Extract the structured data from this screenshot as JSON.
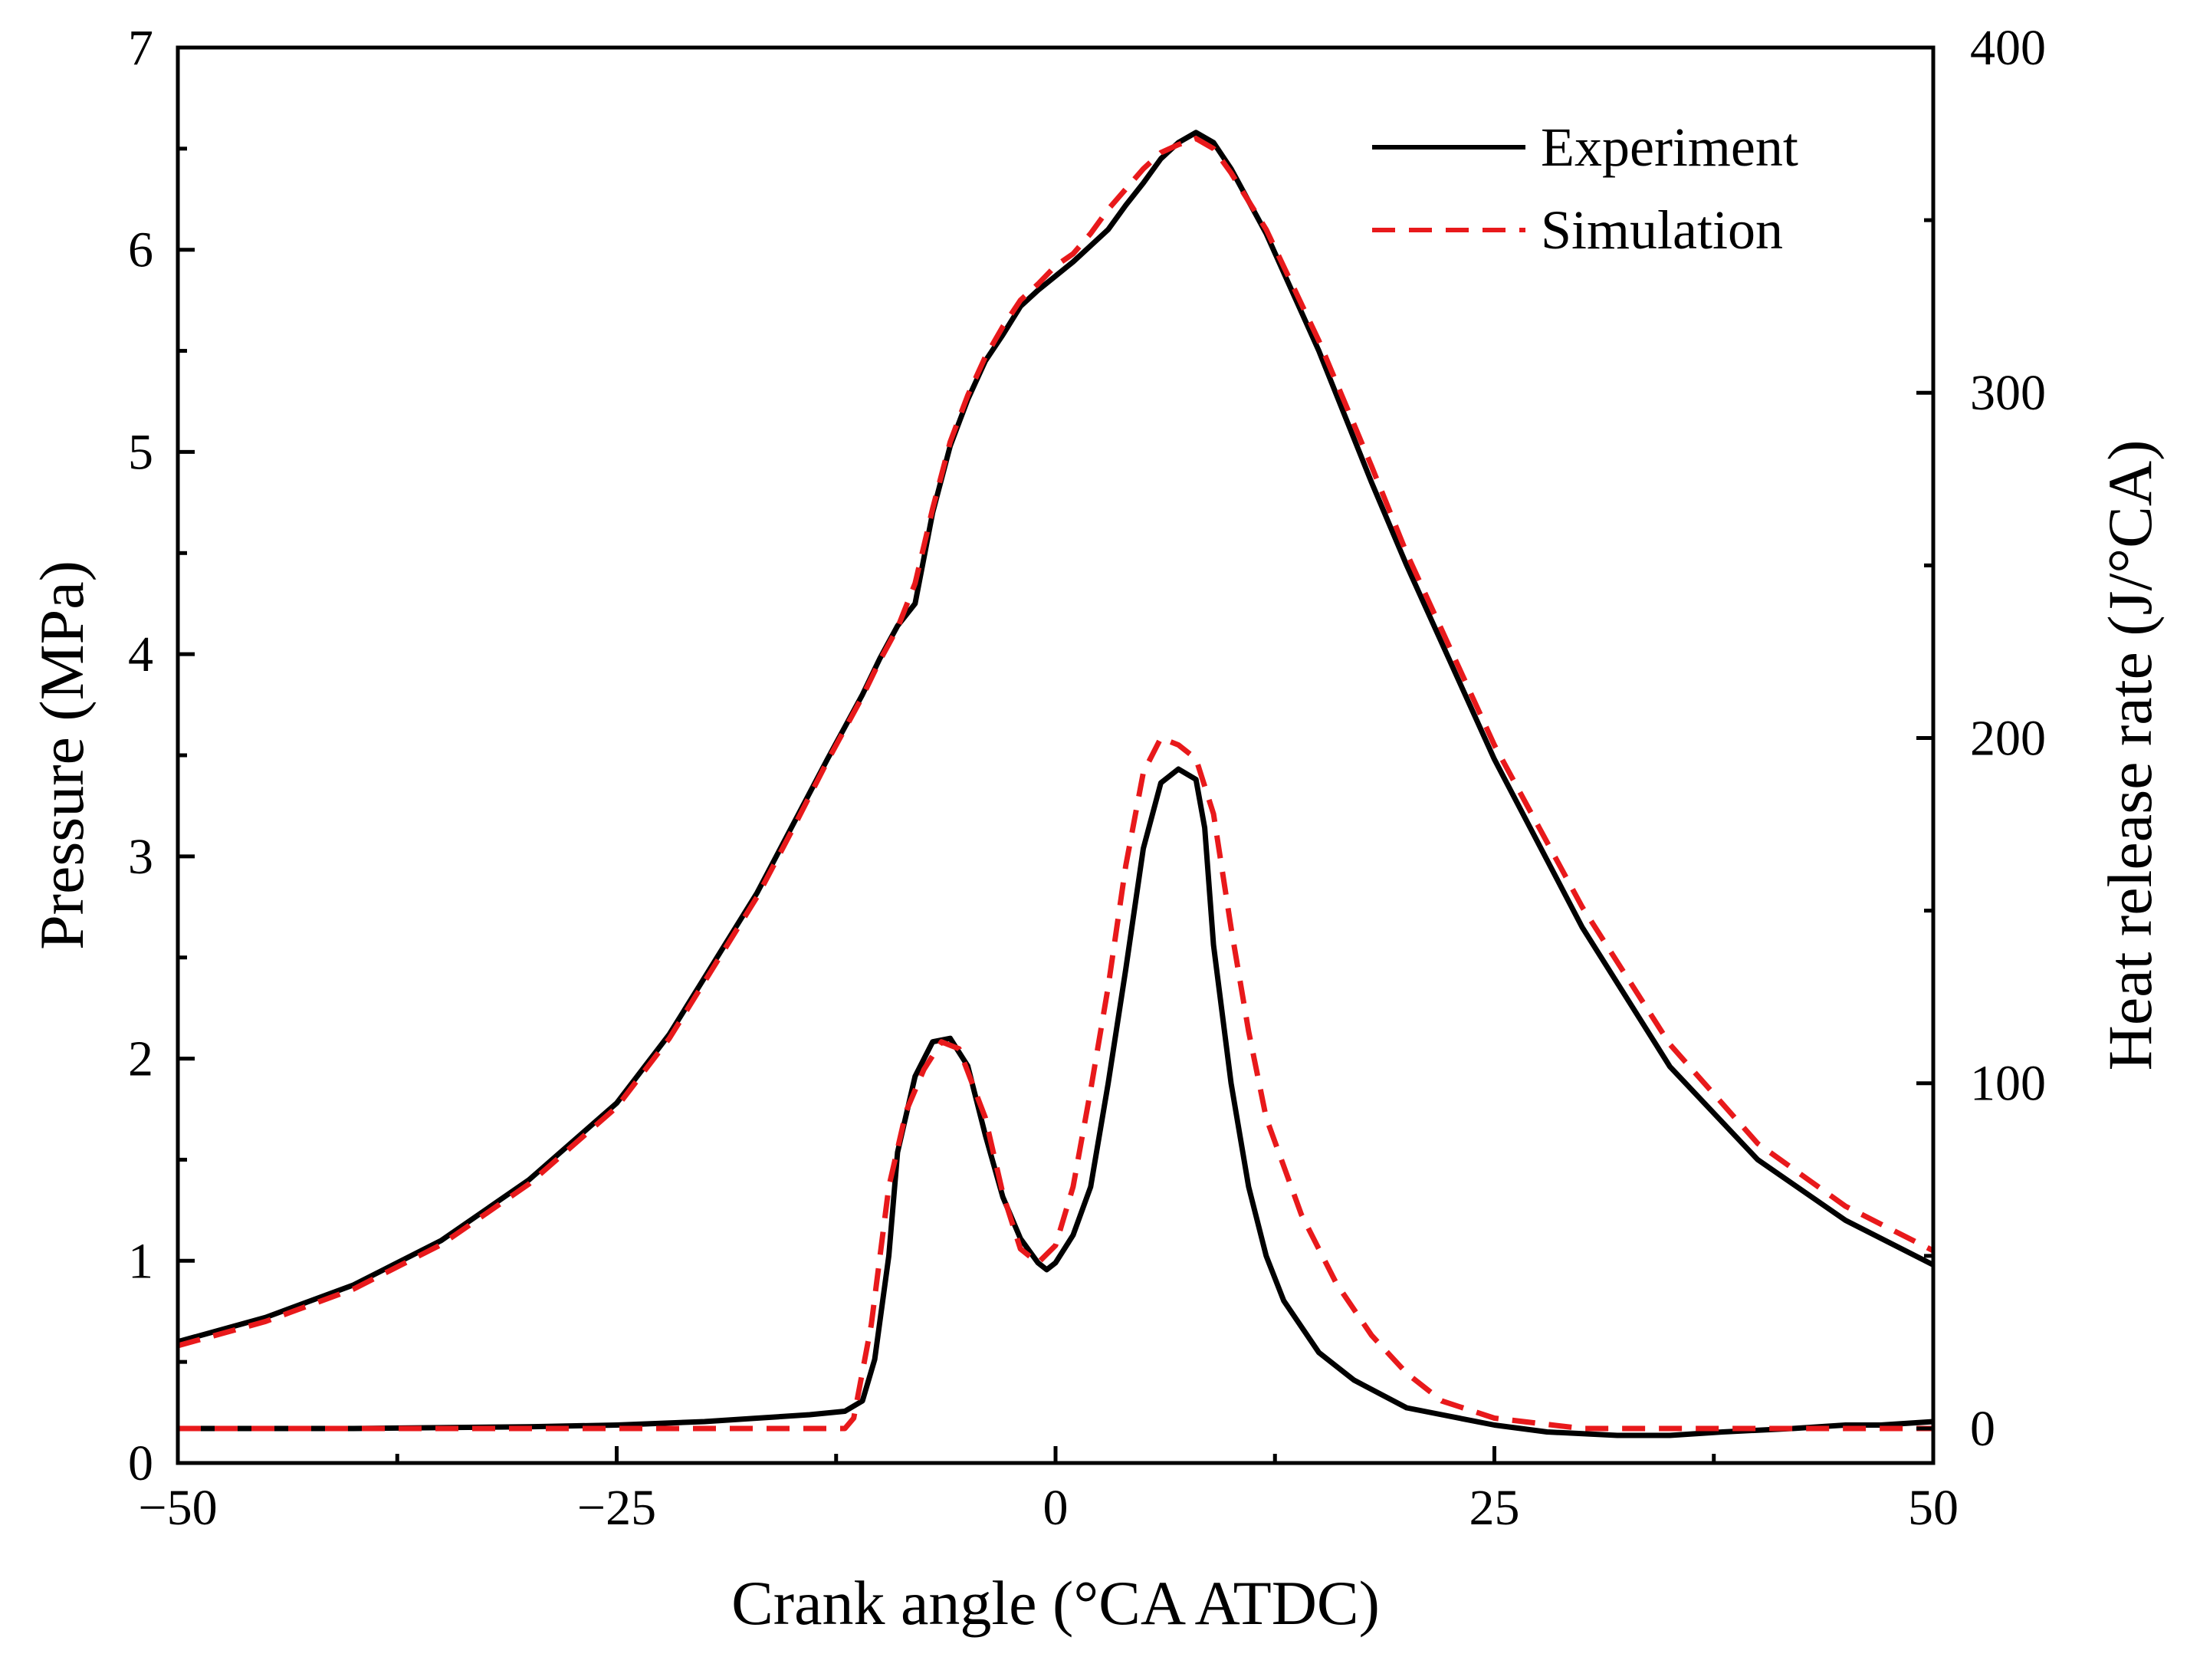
{
  "chart_data": {
    "type": "line",
    "title": "",
    "xlabel": "Crank angle (°CA ATDC)",
    "ylabel_left": "Pressure (MPa)",
    "ylabel_right": "Heat release rate (J/°CA)",
    "xlim": [
      -50,
      50
    ],
    "ylim_left": [
      0,
      7
    ],
    "ylim_right": [
      -10,
      400
    ],
    "x_ticks": [
      "−50",
      "−25",
      "0",
      "25",
      "50"
    ],
    "y_left_ticks": [
      "0",
      "1",
      "2",
      "3",
      "4",
      "5",
      "6",
      "7"
    ],
    "y_right_ticks": [
      "0",
      "100",
      "200",
      "300",
      "400"
    ],
    "grid": false,
    "legend": {
      "position": "top-right",
      "entries": [
        {
          "label": "Experiment",
          "color": "#000000",
          "style": "solid"
        },
        {
          "label": "Simulation",
          "color": "#e8191b",
          "style": "dashed"
        }
      ]
    },
    "series": [
      {
        "name": "Experiment",
        "quantity": "pressure",
        "axis": "left",
        "color": "#000000",
        "style": "solid",
        "points": [
          [
            -50,
            0.6
          ],
          [
            -45,
            0.72
          ],
          [
            -40,
            0.88
          ],
          [
            -35,
            1.1
          ],
          [
            -30,
            1.4
          ],
          [
            -25,
            1.78
          ],
          [
            -22,
            2.12
          ],
          [
            -20,
            2.4
          ],
          [
            -17,
            2.82
          ],
          [
            -15,
            3.15
          ],
          [
            -13,
            3.48
          ],
          [
            -11,
            3.8
          ],
          [
            -10,
            3.98
          ],
          [
            -9,
            4.14
          ],
          [
            -8,
            4.25
          ],
          [
            -7,
            4.7
          ],
          [
            -6,
            5.03
          ],
          [
            -5,
            5.26
          ],
          [
            -4,
            5.45
          ],
          [
            -3,
            5.58
          ],
          [
            -2,
            5.72
          ],
          [
            -1,
            5.8
          ],
          [
            0,
            5.87
          ],
          [
            1,
            5.94
          ],
          [
            2,
            6.02
          ],
          [
            3,
            6.1
          ],
          [
            4,
            6.22
          ],
          [
            5,
            6.33
          ],
          [
            6,
            6.45
          ],
          [
            7,
            6.53
          ],
          [
            8,
            6.58
          ],
          [
            9,
            6.53
          ],
          [
            10,
            6.4
          ],
          [
            12,
            6.08
          ],
          [
            15,
            5.5
          ],
          [
            18,
            4.85
          ],
          [
            20,
            4.44
          ],
          [
            25,
            3.48
          ],
          [
            30,
            2.65
          ],
          [
            35,
            1.96
          ],
          [
            40,
            1.5
          ],
          [
            45,
            1.2
          ],
          [
            50,
            0.98
          ]
        ]
      },
      {
        "name": "Simulation",
        "quantity": "pressure",
        "axis": "left",
        "color": "#e8191b",
        "style": "dashed",
        "points": [
          [
            -50,
            0.58
          ],
          [
            -45,
            0.7
          ],
          [
            -40,
            0.86
          ],
          [
            -35,
            1.08
          ],
          [
            -30,
            1.38
          ],
          [
            -25,
            1.76
          ],
          [
            -22,
            2.1
          ],
          [
            -20,
            2.38
          ],
          [
            -17,
            2.8
          ],
          [
            -15,
            3.13
          ],
          [
            -13,
            3.47
          ],
          [
            -11,
            3.79
          ],
          [
            -10,
            3.97
          ],
          [
            -9,
            4.13
          ],
          [
            -8,
            4.35
          ],
          [
            -7,
            4.72
          ],
          [
            -6,
            5.05
          ],
          [
            -5,
            5.28
          ],
          [
            -4,
            5.47
          ],
          [
            -3,
            5.62
          ],
          [
            -2,
            5.75
          ],
          [
            -1,
            5.83
          ],
          [
            0,
            5.92
          ],
          [
            1,
            5.98
          ],
          [
            2,
            6.08
          ],
          [
            3,
            6.2
          ],
          [
            4,
            6.3
          ],
          [
            5,
            6.4
          ],
          [
            6,
            6.48
          ],
          [
            7,
            6.52
          ],
          [
            8,
            6.55
          ],
          [
            9,
            6.5
          ],
          [
            10,
            6.38
          ],
          [
            12,
            6.1
          ],
          [
            15,
            5.55
          ],
          [
            18,
            4.93
          ],
          [
            20,
            4.5
          ],
          [
            25,
            3.55
          ],
          [
            30,
            2.75
          ],
          [
            35,
            2.07
          ],
          [
            40,
            1.58
          ],
          [
            45,
            1.27
          ],
          [
            50,
            1.05
          ]
        ]
      },
      {
        "name": "Experiment",
        "quantity": "heat release rate",
        "axis": "right",
        "color": "#000000",
        "style": "solid",
        "points": [
          [
            -50,
            0
          ],
          [
            -40,
            0
          ],
          [
            -30,
            0.5
          ],
          [
            -25,
            1
          ],
          [
            -20,
            2
          ],
          [
            -17,
            3
          ],
          [
            -14,
            4
          ],
          [
            -12,
            5
          ],
          [
            -11,
            8
          ],
          [
            -10.3,
            20
          ],
          [
            -9.5,
            50
          ],
          [
            -9,
            80
          ],
          [
            -8,
            102
          ],
          [
            -7,
            112
          ],
          [
            -6,
            113
          ],
          [
            -5,
            105
          ],
          [
            -4,
            85
          ],
          [
            -3,
            67
          ],
          [
            -2,
            55
          ],
          [
            -1,
            48
          ],
          [
            -0.5,
            46
          ],
          [
            0,
            48
          ],
          [
            1,
            56
          ],
          [
            2,
            70
          ],
          [
            3,
            100
          ],
          [
            4,
            133
          ],
          [
            5,
            168
          ],
          [
            6,
            187
          ],
          [
            7,
            191
          ],
          [
            8,
            188
          ],
          [
            8.5,
            174
          ],
          [
            9,
            140
          ],
          [
            10,
            100
          ],
          [
            11,
            70
          ],
          [
            12,
            50
          ],
          [
            13,
            37
          ],
          [
            15,
            22
          ],
          [
            17,
            14
          ],
          [
            20,
            6
          ],
          [
            22,
            4
          ],
          [
            25,
            1
          ],
          [
            28,
            -1
          ],
          [
            32,
            -2
          ],
          [
            35,
            -2
          ],
          [
            38,
            -1
          ],
          [
            42,
            0
          ],
          [
            45,
            1
          ],
          [
            47,
            1
          ],
          [
            50,
            2
          ]
        ]
      },
      {
        "name": "Simulation",
        "quantity": "heat release rate",
        "axis": "right",
        "color": "#e8191b",
        "style": "dashed",
        "points": [
          [
            -50,
            0
          ],
          [
            -40,
            0
          ],
          [
            -30,
            0
          ],
          [
            -20,
            0
          ],
          [
            -15,
            0
          ],
          [
            -12,
            0
          ],
          [
            -11.5,
            3
          ],
          [
            -10.5,
            30
          ],
          [
            -9.5,
            70
          ],
          [
            -8.5,
            92
          ],
          [
            -7.5,
            104
          ],
          [
            -6.5,
            112
          ],
          [
            -5.5,
            110
          ],
          [
            -4,
            90
          ],
          [
            -3,
            68
          ],
          [
            -2,
            52
          ],
          [
            -1,
            48
          ],
          [
            0,
            53
          ],
          [
            1,
            70
          ],
          [
            2,
            98
          ],
          [
            3,
            128
          ],
          [
            4,
            163
          ],
          [
            5,
            190
          ],
          [
            6,
            200
          ],
          [
            7,
            198
          ],
          [
            8,
            194
          ],
          [
            9,
            178
          ],
          [
            10,
            145
          ],
          [
            11,
            115
          ],
          [
            12,
            90
          ],
          [
            14,
            62
          ],
          [
            16,
            42
          ],
          [
            18,
            27
          ],
          [
            20,
            16
          ],
          [
            22,
            8
          ],
          [
            25,
            3
          ],
          [
            30,
            0
          ],
          [
            35,
            0
          ],
          [
            40,
            0
          ],
          [
            45,
            0
          ],
          [
            50,
            0
          ]
        ]
      }
    ]
  }
}
